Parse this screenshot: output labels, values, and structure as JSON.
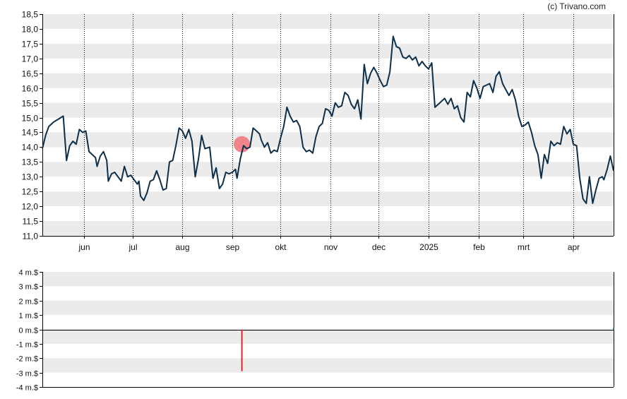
{
  "copyright": "(c) Trivano.com",
  "colors": {
    "band": "#ebebeb",
    "price_line": "#0d2f4a",
    "marker": "#f07e86",
    "volume_neg": "#e0272e",
    "volume_pos": "#118a3a",
    "axis": "#000000"
  },
  "chart_data": [
    {
      "type": "line",
      "title": "",
      "xlabel": "",
      "ylabel": "",
      "grid": true,
      "x_tick_labels": [
        "jun",
        "jul",
        "aug",
        "sep",
        "okt",
        "nov",
        "dec",
        "2025",
        "feb",
        "mrt",
        "apr"
      ],
      "y_tick_labels": [
        "18,5",
        "18,0",
        "17,5",
        "17,0",
        "16,5",
        "16,0",
        "15,5",
        "15,0",
        "14,5",
        "14,0",
        "13,5",
        "13,0",
        "12,5",
        "12,0",
        "11,5",
        "11,0"
      ],
      "ylim": [
        11.0,
        18.5
      ],
      "xlim": [
        "2024-05-06",
        "2025-04-26"
      ],
      "markers": [
        {
          "x": "2024-09-07",
          "y": 14.1
        }
      ],
      "series": [
        {
          "points": [
            [
              "2024-05-06",
              13.95
            ],
            [
              "2024-05-08",
              14.4
            ],
            [
              "2024-05-10",
              14.7
            ],
            [
              "2024-05-13",
              14.85
            ],
            [
              "2024-05-16",
              14.95
            ],
            [
              "2024-05-19",
              15.05
            ],
            [
              "2024-05-21",
              13.55
            ],
            [
              "2024-05-23",
              14.05
            ],
            [
              "2024-05-25",
              14.2
            ],
            [
              "2024-05-27",
              14.1
            ],
            [
              "2024-05-29",
              14.6
            ],
            [
              "2024-05-31",
              14.5
            ],
            [
              "2024-06-02",
              14.55
            ],
            [
              "2024-06-04",
              13.85
            ],
            [
              "2024-06-06",
              13.75
            ],
            [
              "2024-06-08",
              13.65
            ],
            [
              "2024-06-09",
              13.35
            ],
            [
              "2024-06-11",
              13.7
            ],
            [
              "2024-06-13",
              13.85
            ],
            [
              "2024-06-15",
              13.55
            ],
            [
              "2024-06-16",
              12.85
            ],
            [
              "2024-06-18",
              13.1
            ],
            [
              "2024-06-20",
              13.15
            ],
            [
              "2024-06-22",
              13.0
            ],
            [
              "2024-06-24",
              12.85
            ],
            [
              "2024-06-26",
              13.35
            ],
            [
              "2024-06-28",
              13.0
            ],
            [
              "2024-06-30",
              13.05
            ],
            [
              "2024-07-02",
              12.9
            ],
            [
              "2024-07-04",
              12.75
            ],
            [
              "2024-07-05",
              12.85
            ],
            [
              "2024-07-06",
              12.35
            ],
            [
              "2024-07-08",
              12.2
            ],
            [
              "2024-07-10",
              12.45
            ],
            [
              "2024-07-12",
              12.85
            ],
            [
              "2024-07-14",
              12.9
            ],
            [
              "2024-07-16",
              13.2
            ],
            [
              "2024-07-18",
              12.9
            ],
            [
              "2024-07-20",
              12.55
            ],
            [
              "2024-07-22",
              12.6
            ],
            [
              "2024-07-24",
              13.5
            ],
            [
              "2024-07-26",
              13.55
            ],
            [
              "2024-07-28",
              14.05
            ],
            [
              "2024-07-30",
              14.65
            ],
            [
              "2024-08-01",
              14.55
            ],
            [
              "2024-08-03",
              14.3
            ],
            [
              "2024-08-05",
              14.6
            ],
            [
              "2024-08-07",
              14.2
            ],
            [
              "2024-08-09",
              13.0
            ],
            [
              "2024-08-11",
              13.6
            ],
            [
              "2024-08-13",
              14.4
            ],
            [
              "2024-08-15",
              13.95
            ],
            [
              "2024-08-18",
              14.0
            ],
            [
              "2024-08-20",
              12.95
            ],
            [
              "2024-08-22",
              13.3
            ],
            [
              "2024-08-24",
              12.6
            ],
            [
              "2024-08-26",
              12.75
            ],
            [
              "2024-08-28",
              13.15
            ],
            [
              "2024-08-30",
              13.1
            ],
            [
              "2024-09-01",
              13.15
            ],
            [
              "2024-09-03",
              13.25
            ],
            [
              "2024-09-04",
              12.95
            ],
            [
              "2024-09-06",
              13.6
            ],
            [
              "2024-09-08",
              14.05
            ],
            [
              "2024-09-10",
              13.95
            ],
            [
              "2024-09-12",
              14.0
            ],
            [
              "2024-09-14",
              14.65
            ],
            [
              "2024-09-16",
              14.55
            ],
            [
              "2024-09-18",
              14.45
            ],
            [
              "2024-09-19",
              14.25
            ],
            [
              "2024-09-21",
              14.0
            ],
            [
              "2024-09-23",
              14.15
            ],
            [
              "2024-09-25",
              13.8
            ],
            [
              "2024-09-27",
              13.9
            ],
            [
              "2024-09-29",
              13.85
            ],
            [
              "2024-10-01",
              14.3
            ],
            [
              "2024-10-03",
              14.7
            ],
            [
              "2024-10-05",
              15.35
            ],
            [
              "2024-10-07",
              15.05
            ],
            [
              "2024-10-09",
              14.85
            ],
            [
              "2024-10-11",
              14.9
            ],
            [
              "2024-10-13",
              14.7
            ],
            [
              "2024-10-15",
              14.0
            ],
            [
              "2024-10-17",
              13.85
            ],
            [
              "2024-10-19",
              13.9
            ],
            [
              "2024-10-21",
              13.8
            ],
            [
              "2024-10-23",
              14.35
            ],
            [
              "2024-10-25",
              14.7
            ],
            [
              "2024-10-27",
              14.8
            ],
            [
              "2024-10-29",
              15.3
            ],
            [
              "2024-10-31",
              15.25
            ],
            [
              "2024-11-02",
              15.05
            ],
            [
              "2024-11-04",
              15.5
            ],
            [
              "2024-11-06",
              15.35
            ],
            [
              "2024-11-08",
              15.4
            ],
            [
              "2024-11-10",
              15.85
            ],
            [
              "2024-11-12",
              15.75
            ],
            [
              "2024-11-14",
              15.45
            ],
            [
              "2024-11-16",
              15.3
            ],
            [
              "2024-11-18",
              15.6
            ],
            [
              "2024-11-20",
              14.95
            ],
            [
              "2024-11-22",
              16.8
            ],
            [
              "2024-11-24",
              16.15
            ],
            [
              "2024-11-26",
              16.5
            ],
            [
              "2024-11-28",
              16.7
            ],
            [
              "2024-11-30",
              16.5
            ],
            [
              "2024-12-02",
              16.25
            ],
            [
              "2024-12-04",
              16.05
            ],
            [
              "2024-12-06",
              16.1
            ],
            [
              "2024-12-08",
              16.55
            ],
            [
              "2024-12-10",
              17.75
            ],
            [
              "2024-12-12",
              17.4
            ],
            [
              "2024-12-14",
              17.35
            ],
            [
              "2024-12-16",
              17.05
            ],
            [
              "2024-12-18",
              17.0
            ],
            [
              "2024-12-20",
              17.1
            ],
            [
              "2024-12-22",
              16.95
            ],
            [
              "2024-12-24",
              17.05
            ],
            [
              "2024-12-26",
              16.75
            ],
            [
              "2024-12-28",
              16.9
            ],
            [
              "2024-12-30",
              16.75
            ],
            [
              "2025-01-01",
              16.65
            ],
            [
              "2025-01-03",
              16.85
            ],
            [
              "2025-01-05",
              15.35
            ],
            [
              "2025-01-07",
              15.45
            ],
            [
              "2025-01-09",
              15.55
            ],
            [
              "2025-01-11",
              15.65
            ],
            [
              "2025-01-13",
              15.45
            ],
            [
              "2025-01-15",
              15.65
            ],
            [
              "2025-01-17",
              15.3
            ],
            [
              "2025-01-19",
              15.4
            ],
            [
              "2025-01-21",
              15.0
            ],
            [
              "2025-01-23",
              14.85
            ],
            [
              "2025-01-25",
              15.85
            ],
            [
              "2025-01-27",
              15.7
            ],
            [
              "2025-01-29",
              16.25
            ],
            [
              "2025-01-31",
              16.0
            ],
            [
              "2025-02-02",
              15.65
            ],
            [
              "2025-02-04",
              16.05
            ],
            [
              "2025-02-06",
              16.1
            ],
            [
              "2025-02-08",
              16.15
            ],
            [
              "2025-02-10",
              15.85
            ],
            [
              "2025-02-12",
              16.4
            ],
            [
              "2025-02-14",
              16.55
            ],
            [
              "2025-02-16",
              16.15
            ],
            [
              "2025-02-18",
              15.95
            ],
            [
              "2025-02-20",
              15.75
            ],
            [
              "2025-02-22",
              15.95
            ],
            [
              "2025-02-24",
              15.6
            ],
            [
              "2025-02-26",
              15.05
            ],
            [
              "2025-02-28",
              14.7
            ],
            [
              "2025-03-02",
              14.75
            ],
            [
              "2025-03-04",
              14.85
            ],
            [
              "2025-03-06",
              14.5
            ],
            [
              "2025-03-08",
              14.05
            ],
            [
              "2025-03-10",
              13.75
            ],
            [
              "2025-03-12",
              12.95
            ],
            [
              "2025-03-14",
              13.75
            ],
            [
              "2025-03-16",
              13.45
            ],
            [
              "2025-03-18",
              14.2
            ],
            [
              "2025-03-20",
              14.05
            ],
            [
              "2025-03-22",
              14.15
            ],
            [
              "2025-03-24",
              14.1
            ],
            [
              "2025-03-26",
              14.7
            ],
            [
              "2025-03-28",
              14.45
            ],
            [
              "2025-03-30",
              14.6
            ],
            [
              "2025-04-01",
              14.1
            ],
            [
              "2025-04-03",
              14.05
            ],
            [
              "2025-04-05",
              12.95
            ],
            [
              "2025-04-07",
              12.25
            ],
            [
              "2025-04-09",
              12.1
            ],
            [
              "2025-04-11",
              13.0
            ],
            [
              "2025-04-13",
              12.1
            ],
            [
              "2025-04-15",
              12.55
            ],
            [
              "2025-04-17",
              12.95
            ],
            [
              "2025-04-19",
              13.0
            ],
            [
              "2025-04-20",
              12.9
            ],
            [
              "2025-04-22",
              13.25
            ],
            [
              "2025-04-24",
              13.7
            ],
            [
              "2025-04-26",
              13.2
            ]
          ]
        }
      ]
    },
    {
      "type": "bar",
      "title": "",
      "xlabel": "",
      "ylabel": "",
      "grid": true,
      "y_tick_labels": [
        "4 m.$",
        "3 m.$",
        "2 m.$",
        "1 m.$",
        "0 m.$",
        "-1 m.$",
        "-2 m.$",
        "-3 m.$",
        "-4 m.$"
      ],
      "ylim": [
        -4,
        4
      ],
      "units": "m.$",
      "bars": [
        {
          "x": "2024-09-07",
          "value": -2.9
        },
        {
          "x": "2025-04-26",
          "value": 0.1
        }
      ]
    }
  ]
}
